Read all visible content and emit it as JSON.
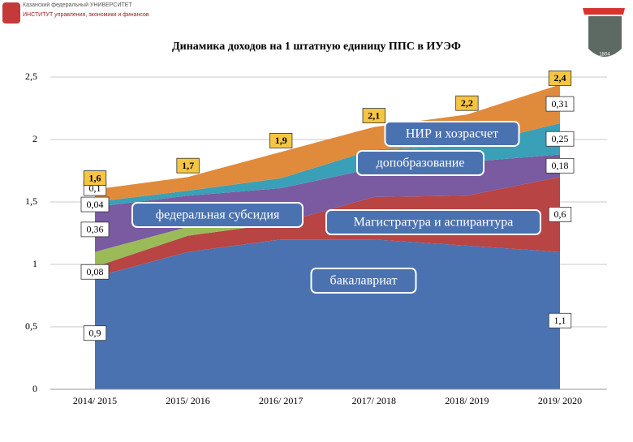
{
  "header": {
    "university": "Казанский федеральный УНИВЕРСИТЕТ",
    "institute": "ИНСТИТУТ управления, экономики и финансов",
    "logo_year": "1804"
  },
  "chart_data": {
    "type": "stacked-area",
    "title": "Динамика доходов на 1 штатную единицу ППС в ИУЭФ",
    "categories": [
      "2014/ 2015",
      "2015/ 2016",
      "2016/ 2017",
      "2017/ 2018",
      "2018/ 2019",
      "2019/ 2020"
    ],
    "series": [
      {
        "name": "бакалавриат",
        "color": "#4a72b0",
        "values": [
          0.9,
          1.1,
          1.2,
          1.2,
          1.15,
          1.1
        ],
        "value_labels": [
          "0,9",
          null,
          null,
          null,
          null,
          "1,1"
        ]
      },
      {
        "name": "Магистратура и аспирантура",
        "color": "#b84444",
        "values": [
          0.08,
          0.13,
          0.13,
          0.34,
          0.4,
          0.6
        ],
        "value_labels": [
          "0,08",
          null,
          null,
          null,
          null,
          "0,6"
        ]
      },
      {
        "color": "#9bbb59",
        "values": [
          0.12,
          0.07,
          0,
          0,
          0,
          0
        ]
      },
      {
        "name": "федеральная субсидия",
        "color": "#7a5aa0",
        "values": [
          0.36,
          0.25,
          0.28,
          0.23,
          0.27,
          0.18
        ],
        "value_labels": [
          "0,36",
          null,
          null,
          null,
          null,
          "0,18"
        ]
      },
      {
        "name": "допобразование",
        "color": "#3aa0b8",
        "values": [
          0.04,
          0.04,
          0.08,
          0.15,
          0.13,
          0.25
        ],
        "value_labels": [
          "0,04",
          null,
          null,
          null,
          null,
          "0,25"
        ]
      },
      {
        "name": "НИР и хозрасчет",
        "color": "#e08a3c",
        "values": [
          0.1,
          0.11,
          0.21,
          0.18,
          0.25,
          0.31
        ],
        "value_labels": [
          "0,1",
          null,
          null,
          null,
          null,
          "0,31"
        ]
      }
    ],
    "totals": [
      1.6,
      1.7,
      1.9,
      2.1,
      2.2,
      2.4
    ],
    "total_labels": [
      "1,6",
      "1,7",
      "1,9",
      "2,1",
      "2,2",
      "2,4"
    ],
    "ylim": [
      0,
      2.5
    ],
    "yticks": [
      0,
      {
        "value": 0.5,
        "label": "0,5"
      },
      1,
      {
        "value": 1.5,
        "label": "1,5"
      },
      2,
      {
        "value": 2.5,
        "label": "2,5"
      }
    ],
    "grid": true
  }
}
